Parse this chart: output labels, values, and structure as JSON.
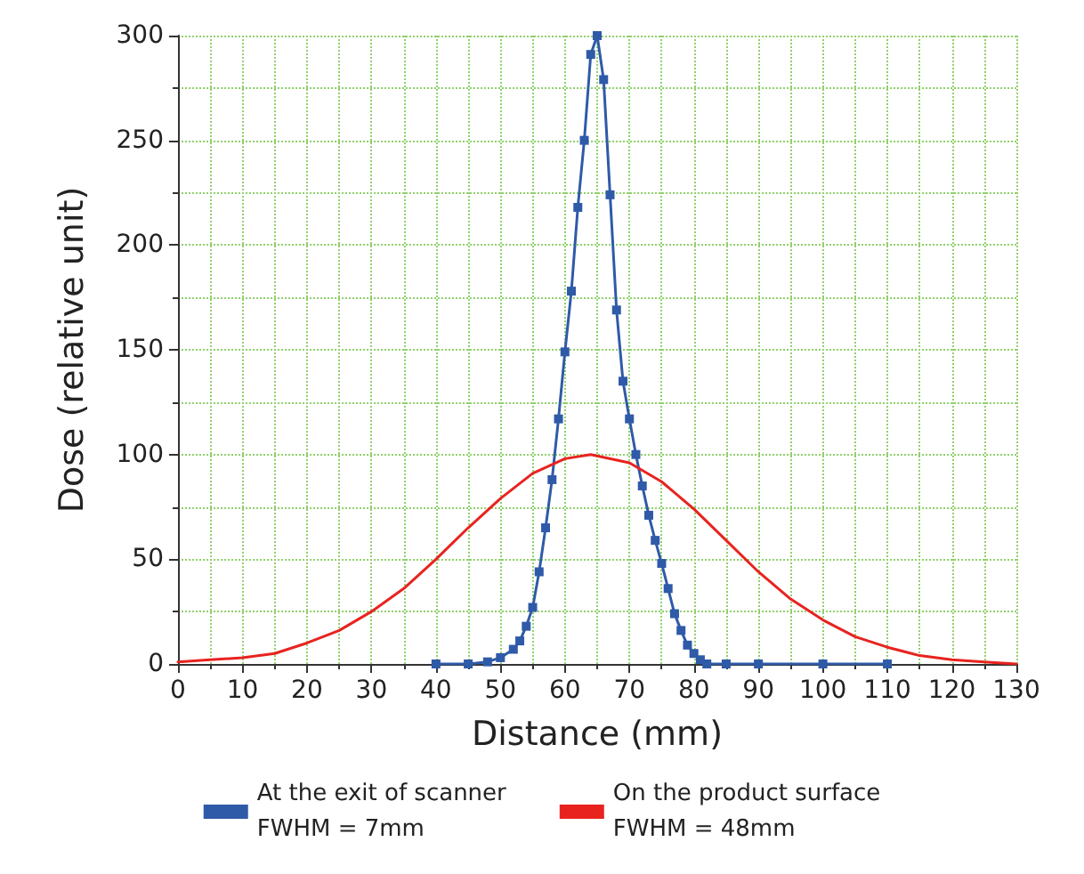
{
  "chart_data": {
    "type": "line",
    "xlabel": "Distance (mm)",
    "ylabel": "Dose (relative unit)",
    "xlim": [
      0,
      130
    ],
    "xticks": [
      0,
      10,
      20,
      30,
      40,
      50,
      60,
      70,
      80,
      90,
      100,
      110,
      120,
      130
    ],
    "ylim": [
      0,
      300
    ],
    "yticks": [
      0,
      50,
      100,
      150,
      200,
      250,
      300
    ],
    "grid": true,
    "legend": "bottom",
    "series": [
      {
        "name": "At the exit of scanner\nFWHM = 7mm",
        "color": "#2f5aa8",
        "marker": "square",
        "x": [
          40,
          45,
          48,
          50,
          52,
          53,
          54,
          55,
          56,
          57,
          58,
          59,
          60,
          61,
          62,
          63,
          64,
          65,
          66,
          67,
          68,
          69,
          70,
          71,
          72,
          73,
          74,
          75,
          76,
          77,
          78,
          79,
          80,
          81,
          82,
          85,
          90,
          100,
          110
        ],
        "values": [
          0,
          0,
          1,
          3,
          7,
          11,
          18,
          27,
          44,
          65,
          88,
          117,
          149,
          178,
          218,
          250,
          291,
          300,
          279,
          224,
          169,
          135,
          117,
          100,
          85,
          71,
          59,
          48,
          36,
          24,
          16,
          9,
          5,
          2,
          0,
          0,
          0,
          0,
          0
        ]
      },
      {
        "name": "On the product surface\nFWHM = 48mm",
        "color": "#e8231f",
        "marker": "none",
        "x": [
          0,
          5,
          10,
          15,
          20,
          25,
          30,
          35,
          40,
          45,
          50,
          55,
          60,
          64,
          70,
          75,
          80,
          85,
          90,
          95,
          100,
          105,
          110,
          115,
          120,
          125,
          130
        ],
        "values": [
          1,
          2,
          3,
          5,
          10,
          16,
          25,
          36,
          50,
          65,
          79,
          91,
          98,
          100,
          96,
          87,
          74,
          59,
          44,
          31,
          21,
          13,
          8,
          4,
          2,
          1,
          0
        ]
      }
    ]
  }
}
